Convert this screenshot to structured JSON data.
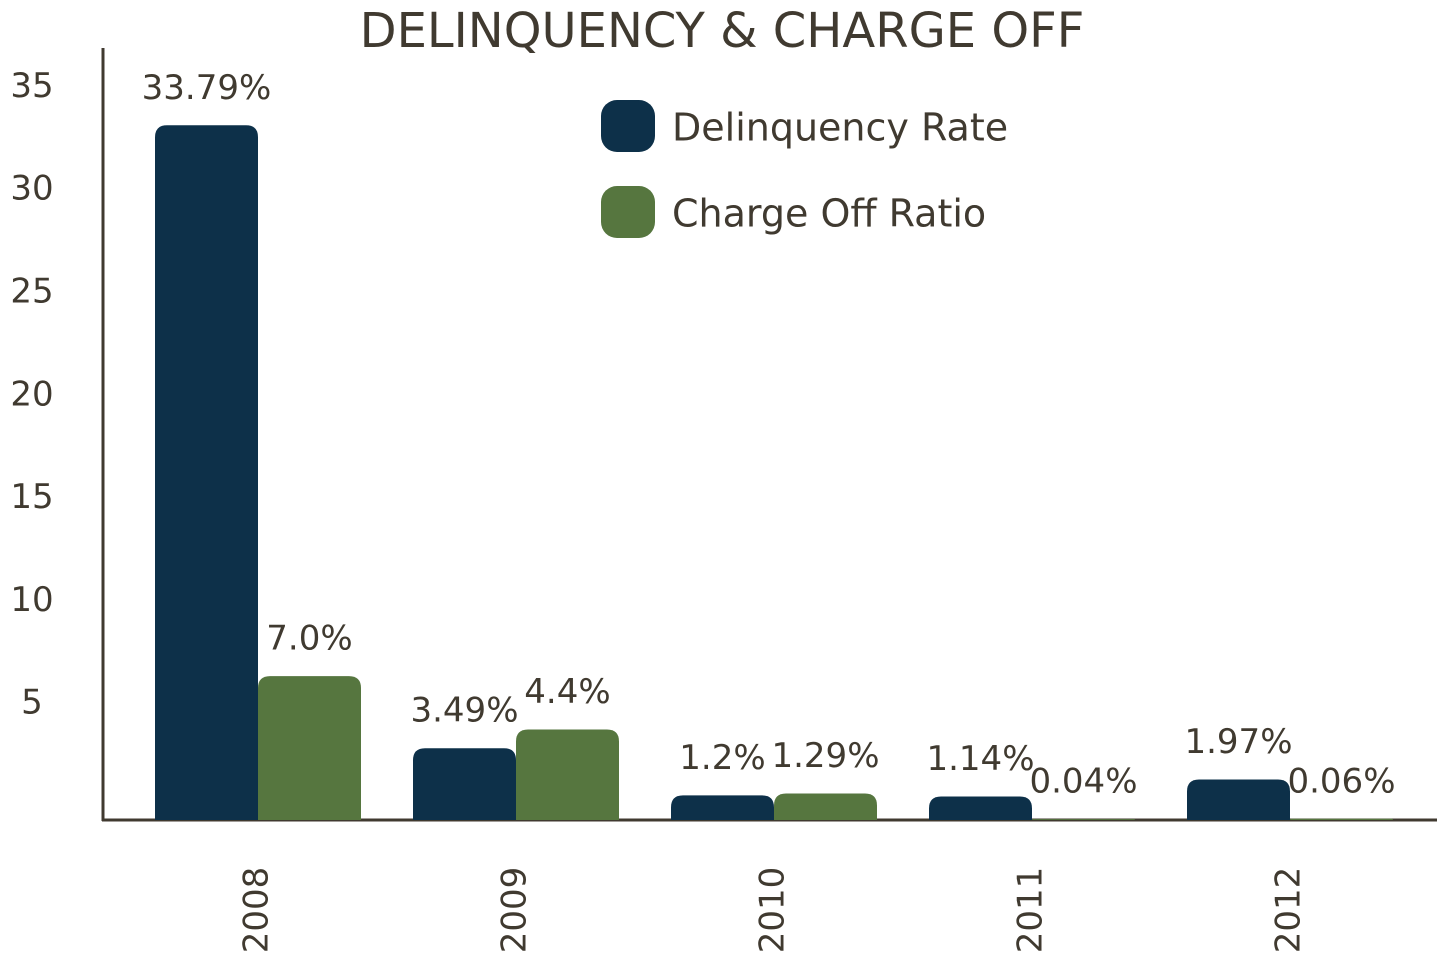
{
  "chart_data": {
    "type": "bar",
    "title": "DELINQUENCY & CHARGE OFF",
    "categories": [
      "2008",
      "2009",
      "2010",
      "2011",
      "2012"
    ],
    "series": [
      {
        "name": "Delinquency Rate",
        "color": "#0d3049",
        "values": [
          33.79,
          3.49,
          1.2,
          1.14,
          1.97
        ],
        "value_labels": [
          "33.79%",
          "3.49%",
          "1.2%",
          "1.14%",
          "1.97%"
        ]
      },
      {
        "name": "Charge Off Ratio",
        "color": "#56763f",
        "values": [
          7.0,
          4.4,
          1.29,
          0.04,
          0.06
        ],
        "value_labels": [
          "7.0%",
          "4.4%",
          "1.29%",
          "0.04%",
          "0.06%"
        ]
      }
    ],
    "ylim": [
      0,
      37.5
    ],
    "yticks": [
      5,
      10,
      15,
      20,
      25,
      30,
      35
    ],
    "grid": false,
    "legend": "top-center"
  }
}
